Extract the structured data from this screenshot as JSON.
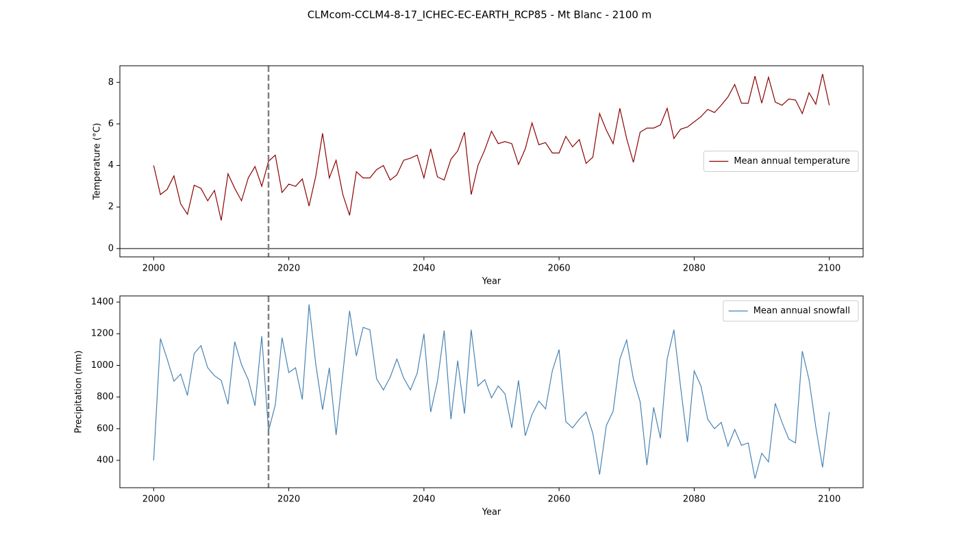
{
  "title": "CLMcom-CCLM4-8-17_ICHEC-EC-EARTH_RCP85 - Mt Blanc - 2100 m",
  "chart_data": [
    {
      "type": "line",
      "xlabel": "Year",
      "ylabel": "Temperature (°C)",
      "x": [
        2000,
        2001,
        2002,
        2003,
        2004,
        2005,
        2006,
        2007,
        2008,
        2009,
        2010,
        2011,
        2012,
        2013,
        2014,
        2015,
        2016,
        2017,
        2018,
        2019,
        2020,
        2021,
        2022,
        2023,
        2024,
        2025,
        2026,
        2027,
        2028,
        2029,
        2030,
        2031,
        2032,
        2033,
        2034,
        2035,
        2036,
        2037,
        2038,
        2039,
        2040,
        2041,
        2042,
        2043,
        2044,
        2045,
        2046,
        2047,
        2048,
        2049,
        2050,
        2051,
        2052,
        2053,
        2054,
        2055,
        2056,
        2057,
        2058,
        2059,
        2060,
        2061,
        2062,
        2063,
        2064,
        2065,
        2066,
        2067,
        2068,
        2069,
        2070,
        2071,
        2072,
        2073,
        2074,
        2075,
        2076,
        2077,
        2078,
        2079,
        2080,
        2081,
        2082,
        2083,
        2084,
        2085,
        2086,
        2087,
        2088,
        2089,
        2090,
        2091,
        2092,
        2093,
        2094,
        2095,
        2096,
        2097,
        2098,
        2099,
        2100
      ],
      "series": [
        {
          "name": "Mean annual temperature",
          "color": "#8b0000",
          "values": [
            4.0,
            2.6,
            2.85,
            3.5,
            2.15,
            1.65,
            3.05,
            2.9,
            2.3,
            2.8,
            1.35,
            3.6,
            2.9,
            2.3,
            3.4,
            3.95,
            3.0,
            4.2,
            4.5,
            2.7,
            3.1,
            3.0,
            3.35,
            2.05,
            3.5,
            5.55,
            3.4,
            4.25,
            2.6,
            1.6,
            3.7,
            3.4,
            3.4,
            3.8,
            4.0,
            3.3,
            3.55,
            4.25,
            4.35,
            4.5,
            3.4,
            4.8,
            3.45,
            3.3,
            4.3,
            4.7,
            5.6,
            2.6,
            4.0,
            4.75,
            5.65,
            5.05,
            5.15,
            5.05,
            4.05,
            4.8,
            6.05,
            5.0,
            5.1,
            4.6,
            4.6,
            5.4,
            4.9,
            5.25,
            4.1,
            4.4,
            6.5,
            5.7,
            5.05,
            6.75,
            5.3,
            4.15,
            5.6,
            5.8,
            5.8,
            5.95,
            6.75,
            5.3,
            5.75,
            5.85,
            6.1,
            6.35,
            6.7,
            6.55,
            6.9,
            7.3,
            7.9,
            7.0,
            7.0,
            8.3,
            7.0,
            8.25,
            7.05,
            6.9,
            7.2,
            7.15,
            6.5,
            7.5,
            6.95,
            8.4,
            6.9
          ]
        }
      ],
      "xlim": [
        1995,
        2105
      ],
      "xticks": [
        2000,
        2020,
        2040,
        2060,
        2080,
        2100
      ],
      "ylim": [
        -0.4,
        8.8
      ],
      "yticks": [
        0,
        2,
        4,
        6,
        8
      ],
      "vline": 2017,
      "hline": 0,
      "legend": "center right"
    },
    {
      "type": "line",
      "xlabel": "Year",
      "ylabel": "Precipitation (mm)",
      "x": [
        2000,
        2001,
        2002,
        2003,
        2004,
        2005,
        2006,
        2007,
        2008,
        2009,
        2010,
        2011,
        2012,
        2013,
        2014,
        2015,
        2016,
        2017,
        2018,
        2019,
        2020,
        2021,
        2022,
        2023,
        2024,
        2025,
        2026,
        2027,
        2028,
        2029,
        2030,
        2031,
        2032,
        2033,
        2034,
        2035,
        2036,
        2037,
        2038,
        2039,
        2040,
        2041,
        2042,
        2043,
        2044,
        2045,
        2046,
        2047,
        2048,
        2049,
        2050,
        2051,
        2052,
        2053,
        2054,
        2055,
        2056,
        2057,
        2058,
        2059,
        2060,
        2061,
        2062,
        2063,
        2064,
        2065,
        2066,
        2067,
        2068,
        2069,
        2070,
        2071,
        2072,
        2073,
        2074,
        2075,
        2076,
        2077,
        2078,
        2079,
        2080,
        2081,
        2082,
        2083,
        2084,
        2085,
        2086,
        2087,
        2088,
        2089,
        2090,
        2091,
        2092,
        2093,
        2094,
        2095,
        2096,
        2097,
        2098,
        2099,
        2100
      ],
      "series": [
        {
          "name": "Mean annual snowfall",
          "color": "#4682b4",
          "values": [
            400,
            1170,
            1040,
            900,
            945,
            810,
            1075,
            1125,
            985,
            935,
            905,
            755,
            1150,
            1005,
            910,
            745,
            1185,
            585,
            750,
            1175,
            955,
            985,
            785,
            1385,
            1005,
            720,
            985,
            560,
            950,
            1345,
            1060,
            1240,
            1225,
            915,
            845,
            925,
            1040,
            920,
            845,
            950,
            1200,
            705,
            900,
            1220,
            660,
            1030,
            695,
            1225,
            870,
            910,
            795,
            870,
            820,
            605,
            905,
            555,
            690,
            775,
            725,
            965,
            1100,
            645,
            605,
            660,
            705,
            570,
            310,
            620,
            710,
            1040,
            1160,
            915,
            770,
            370,
            735,
            540,
            1040,
            1225,
            860,
            515,
            965,
            870,
            660,
            600,
            640,
            490,
            595,
            495,
            510,
            285,
            445,
            390,
            760,
            640,
            535,
            510,
            1090,
            910,
            610,
            355,
            705
          ]
        }
      ],
      "xlim": [
        1995,
        2105
      ],
      "xticks": [
        2000,
        2020,
        2040,
        2060,
        2080,
        2100
      ],
      "ylim": [
        227,
        1439
      ],
      "yticks": [
        400,
        600,
        800,
        1000,
        1200,
        1400
      ],
      "vline": 2017,
      "legend": "upper right"
    }
  ]
}
